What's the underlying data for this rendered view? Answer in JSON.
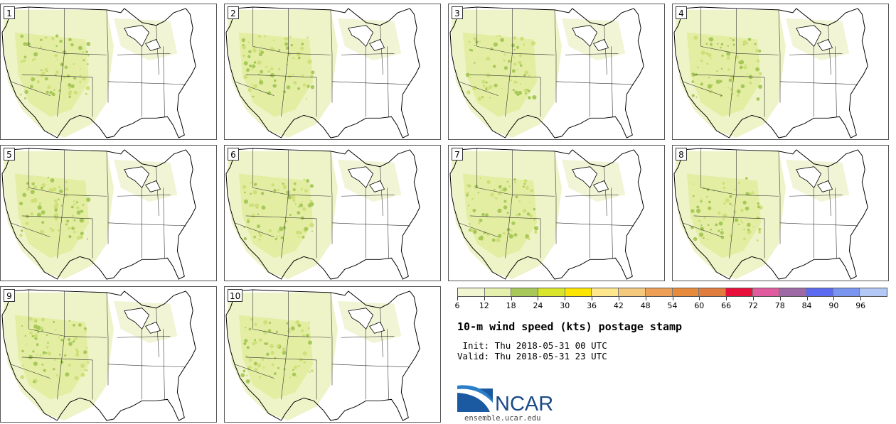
{
  "panels": [
    "1",
    "2",
    "3",
    "4",
    "5",
    "6",
    "7",
    "8",
    "9",
    "10"
  ],
  "colorbar": {
    "colors": [
      "#f2f5d2",
      "#e6f0ad",
      "#a8c95a",
      "#d8e52a",
      "#fce600",
      "#fde68c",
      "#f4c97e",
      "#eda055",
      "#e88a3c",
      "#e07c3e",
      "#e8103a",
      "#e05c9e",
      "#9e6aa6",
      "#5c6af0",
      "#7a95f0",
      "#b3c8f5"
    ],
    "ticks": [
      "6",
      "12",
      "18",
      "24",
      "30",
      "36",
      "42",
      "48",
      "54",
      "60",
      "66",
      "72",
      "78",
      "84",
      "90",
      "96"
    ]
  },
  "title": "10-m wind speed (kts) postage stamp",
  "init": " Init: Thu 2018-05-31 00 UTC",
  "valid": "Valid: Thu 2018-05-31 23 UTC",
  "logo_text": "NCAR",
  "url": "ensemble.ucar.edu"
}
